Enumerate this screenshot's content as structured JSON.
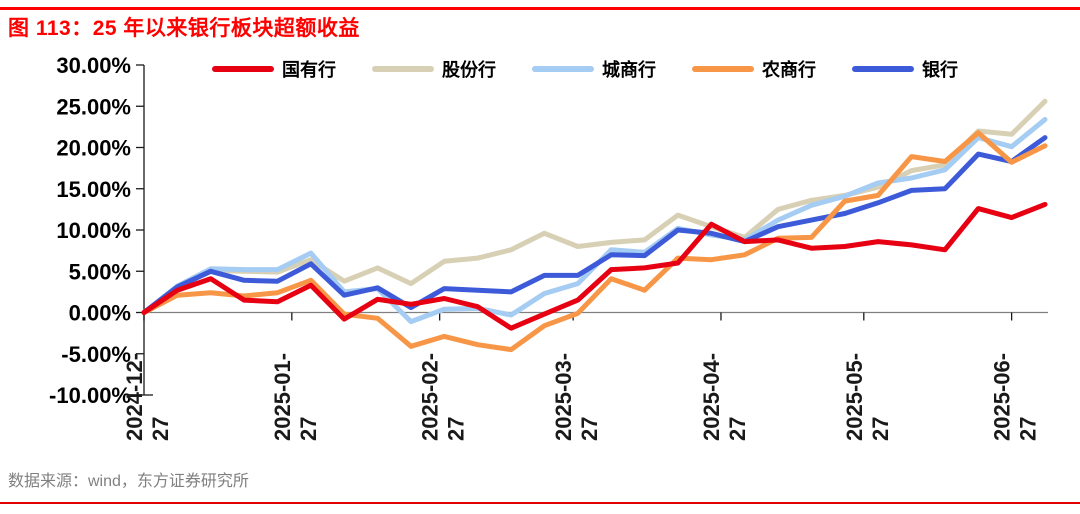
{
  "title": "图 113：25 年以来银行板块超额收益",
  "source": "数据来源：wind，东方证券研究所",
  "accent_colors": {
    "title_red": "#ff0000",
    "rule_red": "#e00000",
    "axis_gray": "#808080",
    "tick_black": "#1a1a1a"
  },
  "chart_data": {
    "type": "line",
    "title": "25 年以来银行板块超额收益",
    "ylabel": "",
    "xlabel": "",
    "ylim": [
      -10,
      30
    ],
    "y_tick_step": 5,
    "y_tick_labels": [
      "30.00%",
      "25.00%",
      "20.00%",
      "15.00%",
      "10.00%",
      "5.00%",
      "0.00%",
      "-5.00%",
      "-10.00%"
    ],
    "grid": "zero-line-only",
    "legend_position": "top-center",
    "x_unit": "weekly points from 2024-12-27 to 2025-07-04",
    "x_tick_weeks": [
      0,
      4.43,
      8.86,
      12.86,
      17.29,
      21.57,
      26.0
    ],
    "x_tick_labels": [
      {
        "line1": "2024-12-",
        "line2": "27"
      },
      {
        "line1": "2025-01-",
        "line2": "27"
      },
      {
        "line1": "2025-02-",
        "line2": "27"
      },
      {
        "line1": "2025-03-",
        "line2": "27"
      },
      {
        "line1": "2025-04-",
        "line2": "27"
      },
      {
        "line1": "2025-05-",
        "line2": "27"
      },
      {
        "line1": "2025-06-",
        "line2": "27"
      }
    ],
    "series": [
      {
        "name": "国有行",
        "color": "#e60012",
        "values": [
          0,
          2.7,
          4.1,
          1.5,
          1.3,
          3.3,
          -0.8,
          1.6,
          1.0,
          1.7,
          0.7,
          -1.9,
          -0.2,
          1.5,
          5.2,
          5.4,
          6.0,
          10.7,
          8.6,
          8.8,
          7.8,
          8.0,
          8.6,
          8.2,
          7.6,
          12.6,
          11.5,
          13.1
        ]
      },
      {
        "name": "股份行",
        "color": "#d8d0b4",
        "values": [
          0,
          3.0,
          5.1,
          5.0,
          4.9,
          6.4,
          3.8,
          5.4,
          3.5,
          6.2,
          6.6,
          7.6,
          9.6,
          8.0,
          8.5,
          8.8,
          11.8,
          10.4,
          9.1,
          12.5,
          13.6,
          14.2,
          15.2,
          17.2,
          17.9,
          22.0,
          21.6,
          25.6
        ]
      },
      {
        "name": "城商行",
        "color": "#a5ccf2",
        "values": [
          0,
          3.2,
          5.3,
          5.2,
          5.2,
          7.2,
          2.5,
          2.9,
          -1.1,
          0.4,
          0.5,
          -0.3,
          2.3,
          3.5,
          7.6,
          7.3,
          10.2,
          9.4,
          8.8,
          11.2,
          13.0,
          14.1,
          15.7,
          16.3,
          17.3,
          21.2,
          20.1,
          23.4
        ]
      },
      {
        "name": "农商行",
        "color": "#f79646",
        "values": [
          0,
          2.1,
          2.4,
          2.0,
          2.4,
          3.9,
          -0.2,
          -0.7,
          -4.1,
          -2.9,
          -3.9,
          -4.5,
          -1.6,
          -0.1,
          4.1,
          2.7,
          6.6,
          6.4,
          7.0,
          9.0,
          9.1,
          13.5,
          14.2,
          18.9,
          18.3,
          21.8,
          18.2,
          20.2
        ]
      },
      {
        "name": "银行",
        "color": "#3d5bd9",
        "values": [
          0,
          3.1,
          5.0,
          3.9,
          3.8,
          5.9,
          2.1,
          3.0,
          0.6,
          2.9,
          2.7,
          2.5,
          4.5,
          4.5,
          7.0,
          6.9,
          10.0,
          9.6,
          8.6,
          10.4,
          11.2,
          12.0,
          13.3,
          14.8,
          15.0,
          19.2,
          18.3,
          21.2
        ]
      }
    ],
    "draw_order": [
      1,
      2,
      4,
      3,
      0
    ]
  }
}
